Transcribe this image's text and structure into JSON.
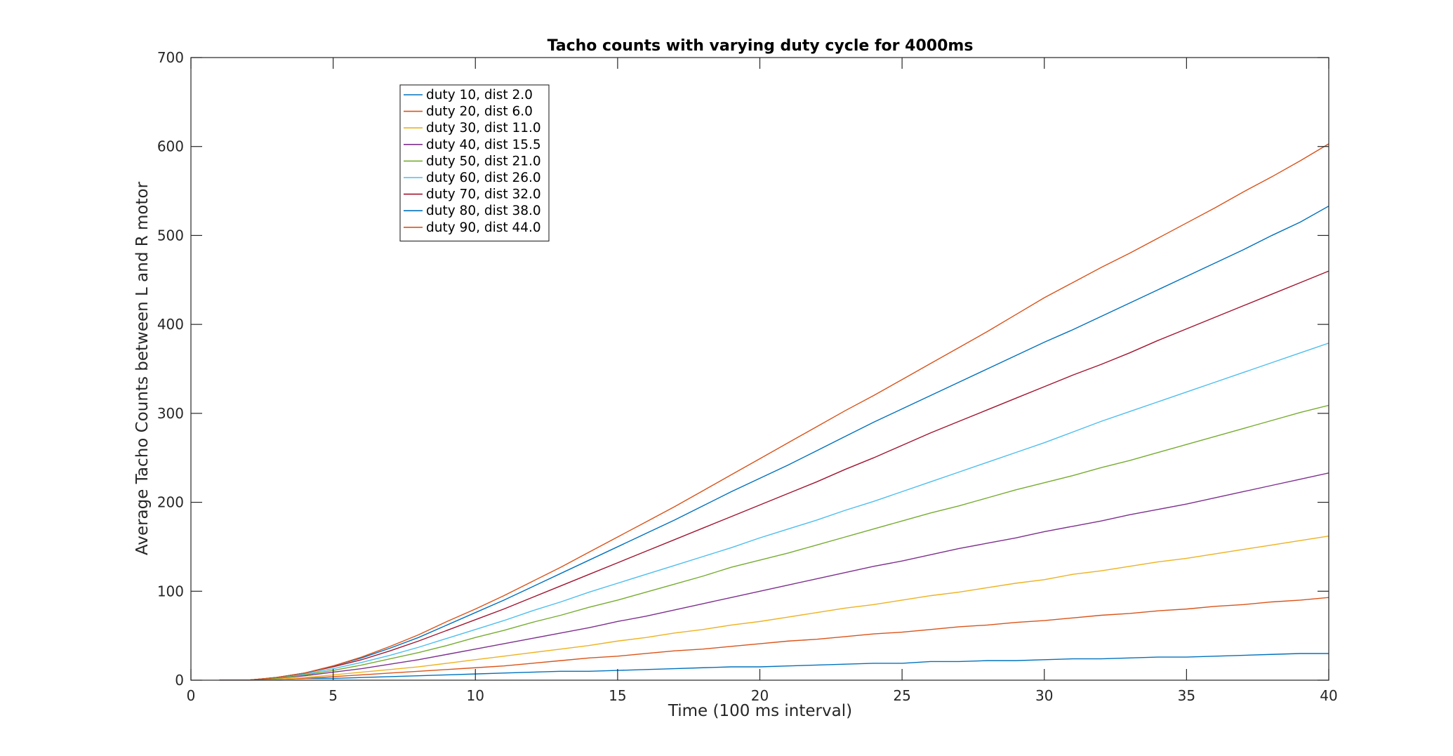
{
  "chart_data": {
    "type": "line",
    "title": "Tacho counts with varying duty cycle for 4000ms",
    "xlabel": "Time (100 ms interval)",
    "ylabel": "Average Tacho Counts between L and R motor",
    "xlim": [
      0,
      40
    ],
    "ylim": [
      0,
      700
    ],
    "xticks": [
      "0",
      "5",
      "10",
      "15",
      "20",
      "25",
      "30",
      "35",
      "40"
    ],
    "yticks": [
      "0",
      "100",
      "200",
      "300",
      "400",
      "500",
      "600",
      "700"
    ],
    "grid": false,
    "legend_position": "top-left",
    "x": [
      1,
      2,
      3,
      4,
      5,
      6,
      7,
      8,
      9,
      10,
      11,
      12,
      13,
      14,
      15,
      16,
      17,
      18,
      19,
      20,
      21,
      22,
      23,
      24,
      25,
      26,
      27,
      28,
      29,
      30,
      31,
      32,
      33,
      34,
      35,
      36,
      37,
      38,
      39,
      40
    ],
    "series": [
      {
        "name": "duty 10, dist 2.0",
        "color": "#0072BD",
        "values": [
          0,
          0,
          1,
          2,
          2,
          3,
          4,
          5,
          6,
          7,
          8,
          9,
          10,
          10,
          11,
          12,
          13,
          14,
          15,
          15,
          16,
          17,
          18,
          19,
          19,
          21,
          21,
          22,
          22,
          23,
          24,
          24,
          25,
          26,
          26,
          27,
          28,
          29,
          30,
          30
        ]
      },
      {
        "name": "duty 20, dist 6.0",
        "color": "#D95319",
        "values": [
          0,
          0,
          1,
          2,
          4,
          6,
          8,
          10,
          12,
          14,
          16,
          19,
          22,
          25,
          27,
          30,
          33,
          35,
          38,
          41,
          44,
          46,
          49,
          52,
          54,
          57,
          60,
          62,
          65,
          67,
          70,
          73,
          75,
          78,
          80,
          83,
          85,
          88,
          90,
          93
        ]
      },
      {
        "name": "duty 30, dist 11.0",
        "color": "#EDB120",
        "values": [
          0,
          0,
          1,
          3,
          6,
          9,
          12,
          15,
          19,
          23,
          27,
          31,
          35,
          39,
          44,
          48,
          53,
          57,
          62,
          66,
          71,
          76,
          81,
          85,
          90,
          95,
          99,
          104,
          109,
          113,
          119,
          123,
          128,
          133,
          137,
          142,
          147,
          152,
          157,
          162
        ]
      },
      {
        "name": "duty 40, dist 15.5",
        "color": "#7E2F8E",
        "values": [
          0,
          0,
          2,
          5,
          9,
          13,
          18,
          23,
          29,
          35,
          41,
          47,
          53,
          59,
          66,
          72,
          79,
          86,
          93,
          100,
          107,
          114,
          121,
          128,
          134,
          141,
          148,
          154,
          160,
          167,
          173,
          179,
          186,
          192,
          198,
          205,
          212,
          219,
          226,
          233
        ]
      },
      {
        "name": "duty 50, dist 21.0",
        "color": "#77AC30",
        "values": [
          0,
          0,
          2,
          6,
          11,
          17,
          24,
          31,
          39,
          48,
          56,
          65,
          73,
          82,
          90,
          99,
          108,
          117,
          127,
          135,
          143,
          152,
          161,
          170,
          179,
          188,
          196,
          205,
          214,
          222,
          230,
          239,
          247,
          256,
          265,
          274,
          283,
          292,
          301,
          309
        ]
      },
      {
        "name": "duty 60, dist 26.0",
        "color": "#4DBEEE",
        "values": [
          0,
          0,
          3,
          7,
          13,
          20,
          28,
          37,
          47,
          57,
          67,
          78,
          88,
          99,
          109,
          119,
          129,
          139,
          149,
          160,
          170,
          180,
          191,
          201,
          212,
          223,
          234,
          245,
          256,
          267,
          279,
          291,
          302,
          313,
          324,
          335,
          346,
          357,
          368,
          379
        ]
      },
      {
        "name": "duty 70, dist 32.0",
        "color": "#A2142F",
        "values": [
          0,
          0,
          3,
          8,
          15,
          23,
          33,
          44,
          56,
          68,
          80,
          93,
          106,
          119,
          132,
          145,
          158,
          171,
          184,
          197,
          210,
          223,
          237,
          250,
          264,
          278,
          291,
          304,
          317,
          330,
          343,
          355,
          368,
          382,
          395,
          408,
          421,
          434,
          447,
          460
        ]
      },
      {
        "name": "duty 80, dist 38.0",
        "color": "#0072BD",
        "values": [
          0,
          0,
          3,
          8,
          16,
          25,
          36,
          48,
          62,
          76,
          90,
          105,
          120,
          135,
          150,
          165,
          180,
          196,
          212,
          227,
          242,
          258,
          274,
          290,
          305,
          320,
          335,
          350,
          365,
          380,
          394,
          409,
          424,
          439,
          454,
          469,
          484,
          500,
          515,
          533
        ]
      },
      {
        "name": "duty 90, dist 44.0",
        "color": "#D95319",
        "values": [
          0,
          0,
          3,
          8,
          16,
          26,
          38,
          51,
          66,
          80,
          95,
          111,
          127,
          144,
          161,
          178,
          195,
          213,
          231,
          249,
          267,
          285,
          303,
          320,
          338,
          356,
          374,
          392,
          411,
          430,
          447,
          464,
          480,
          497,
          514,
          531,
          549,
          566,
          584,
          603
        ]
      }
    ]
  }
}
